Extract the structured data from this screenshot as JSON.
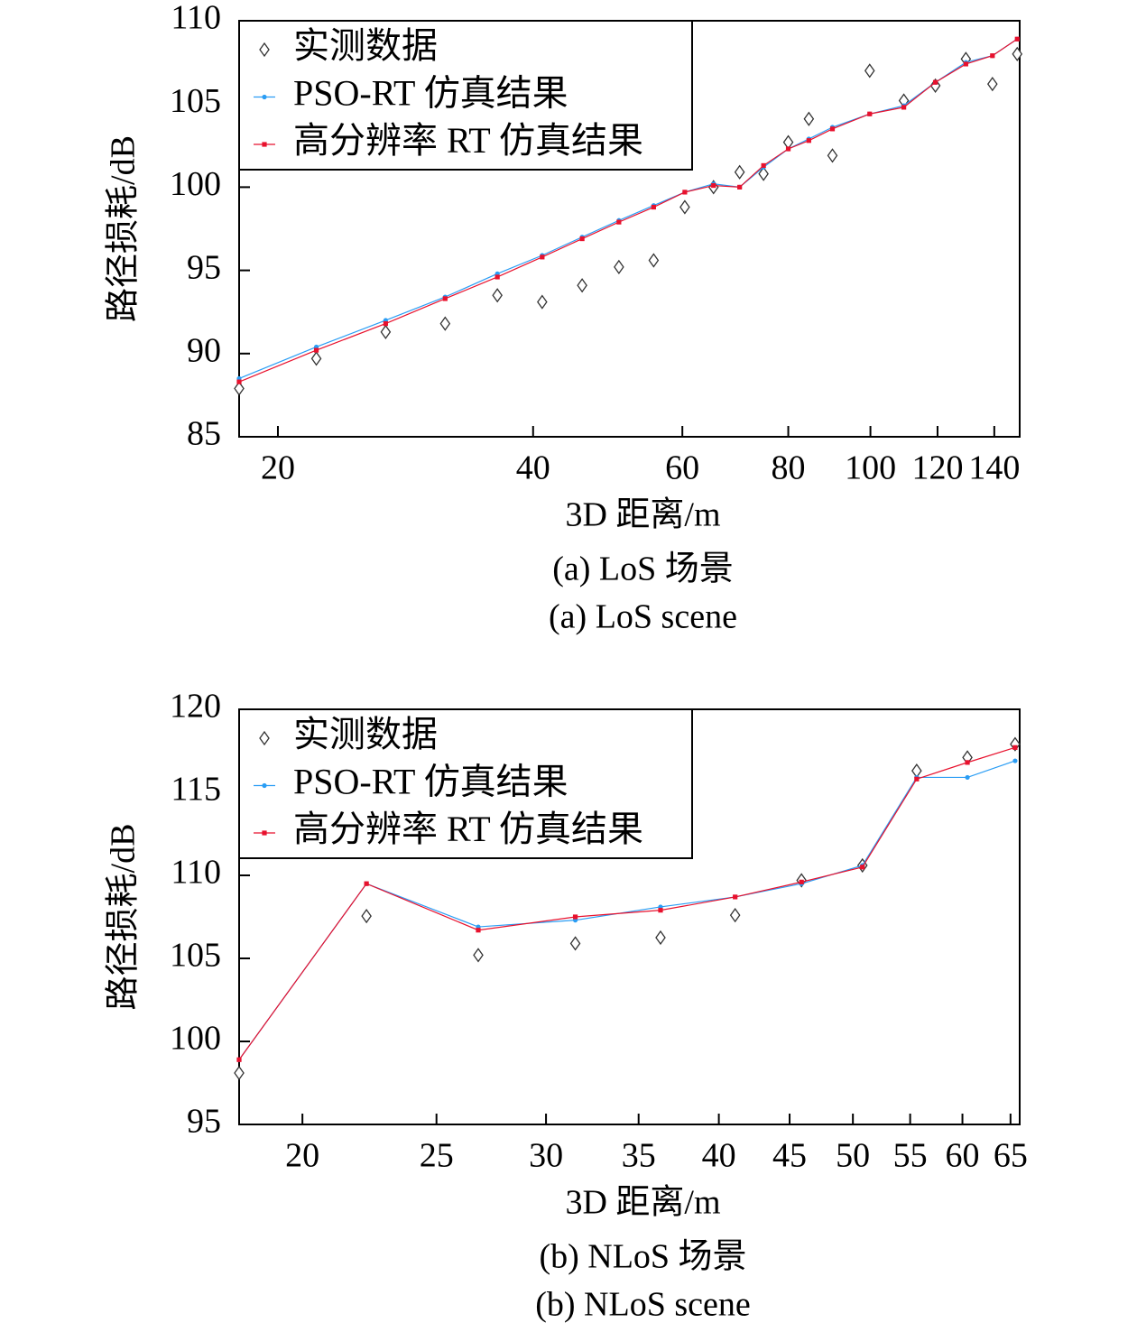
{
  "chart_data": [
    {
      "type": "line",
      "y_label": "路径损耗/dB",
      "x_label": "3D 距离/m",
      "captions": [
        "(a) LoS 场景",
        "(a) LoS scene"
      ],
      "x_log": true,
      "xlim": [
        18,
        150
      ],
      "xticks": [
        20,
        40,
        60,
        80,
        100,
        120,
        140
      ],
      "ylim": [
        85,
        110
      ],
      "yticks": [
        85,
        90,
        95,
        100,
        105,
        110
      ],
      "legend": "upper left",
      "x": [
        18,
        22.2,
        26.8,
        31.5,
        36.3,
        41.0,
        45.7,
        50.5,
        55.5,
        60.4,
        65.3,
        70.1,
        74.8,
        80.0,
        84.6,
        90.2,
        99.8,
        109.5,
        119.3,
        129.6,
        139.3,
        149
      ],
      "series": [
        {
          "name": "实测数据",
          "color": "#333333",
          "marker": "diamond",
          "line": false,
          "values": [
            87.9,
            89.7,
            91.3,
            91.8,
            93.5,
            93.1,
            94.1,
            95.2,
            95.6,
            98.8,
            100.0,
            100.9,
            100.8,
            102.7,
            104.1,
            101.9,
            107.0,
            105.2,
            106.1,
            107.7,
            106.2,
            108.0
          ]
        },
        {
          "name": "PSO-RT 仿真结果",
          "color": "#2a9df4",
          "marker": "circle",
          "line": true,
          "values": [
            88.5,
            90.4,
            92.0,
            93.4,
            94.8,
            95.9,
            97.0,
            98.0,
            98.9,
            99.7,
            100.2,
            100.0,
            101.2,
            102.3,
            102.9,
            103.6,
            104.4,
            104.9,
            106.3,
            107.5,
            107.9,
            108.9
          ]
        },
        {
          "name": "高分辨率 RT 仿真结果",
          "color": "#e8112d",
          "marker": "square",
          "line": true,
          "values": [
            88.3,
            90.2,
            91.8,
            93.3,
            94.6,
            95.8,
            96.9,
            97.9,
            98.8,
            99.7,
            100.1,
            100.0,
            101.3,
            102.3,
            102.8,
            103.5,
            104.4,
            104.8,
            106.3,
            107.4,
            107.9,
            108.9
          ]
        }
      ]
    },
    {
      "type": "line",
      "y_label": "路径损耗/dB",
      "x_label": "3D 距离/m",
      "captions": [
        "(b) NLoS 场景",
        "(b) NLoS scene"
      ],
      "x_log": true,
      "xlim": [
        18,
        66
      ],
      "xticks": [
        20,
        25,
        30,
        35,
        40,
        45,
        50,
        55,
        60,
        65
      ],
      "ylim": [
        95,
        120
      ],
      "yticks": [
        95,
        100,
        105,
        110,
        115,
        120
      ],
      "legend": "upper left",
      "x": [
        18,
        22.25,
        26.8,
        31.5,
        36.3,
        41.1,
        45.9,
        50.8,
        55.6,
        60.5,
        65.5
      ],
      "series": [
        {
          "name": "实测数据",
          "color": "#333333",
          "marker": "diamond",
          "line": false,
          "values": [
            98.1,
            107.55,
            105.2,
            105.9,
            106.25,
            107.6,
            109.7,
            110.6,
            116.3,
            117.1,
            117.9
          ]
        },
        {
          "name": "PSO-RT 仿真结果",
          "color": "#2a9df4",
          "marker": "circle",
          "line": true,
          "values": [
            98.9,
            109.5,
            106.9,
            107.3,
            108.1,
            108.7,
            109.5,
            110.6,
            115.9,
            115.9,
            116.9
          ]
        },
        {
          "name": "高分辨率 RT 仿真结果",
          "color": "#e8112d",
          "marker": "square",
          "line": true,
          "values": [
            98.9,
            109.5,
            106.7,
            107.5,
            107.9,
            108.7,
            109.6,
            110.5,
            115.8,
            116.8,
            117.7
          ]
        }
      ]
    }
  ]
}
